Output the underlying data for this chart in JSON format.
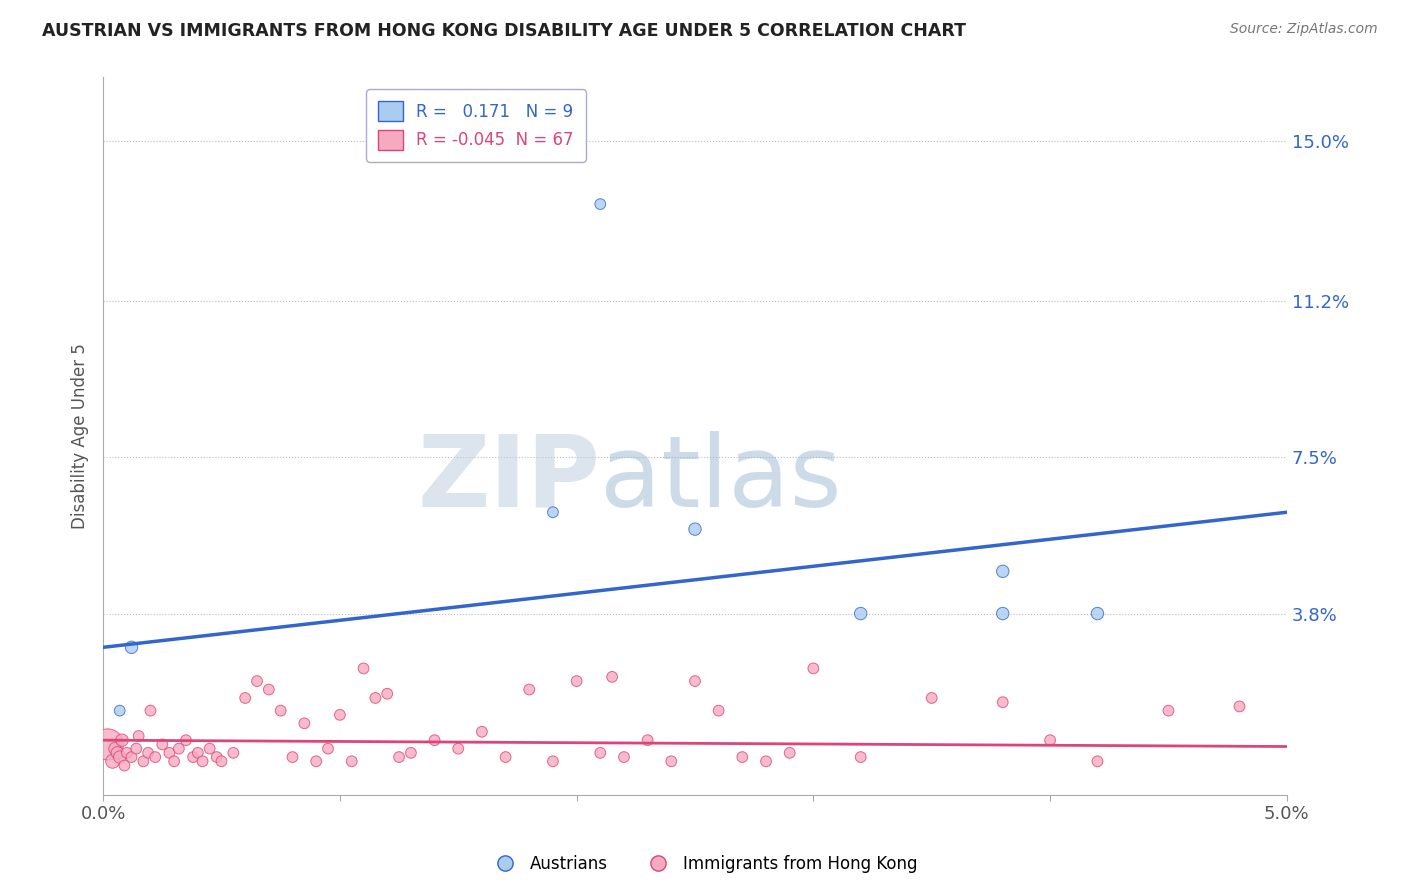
{
  "title": "AUSTRIAN VS IMMIGRANTS FROM HONG KONG DISABILITY AGE UNDER 5 CORRELATION CHART",
  "source": "Source: ZipAtlas.com",
  "ylabel": "Disability Age Under 5",
  "xlim": [
    0.0,
    5.0
  ],
  "ylim": [
    -0.5,
    16.5
  ],
  "yticks": [
    3.8,
    7.5,
    11.2,
    15.0
  ],
  "ytick_labels": [
    "3.8%",
    "7.5%",
    "11.2%",
    "15.0%"
  ],
  "xticks": [
    0.0,
    1.0,
    2.0,
    3.0,
    4.0,
    5.0
  ],
  "xtick_labels": [
    "0.0%",
    "",
    "",
    "",
    "",
    "5.0%"
  ],
  "blue_R": "0.171",
  "blue_N": "9",
  "pink_R": "-0.045",
  "pink_N": "67",
  "blue_color": "#aaccf0",
  "pink_color": "#f5aac0",
  "blue_line_color": "#3366cc",
  "pink_line_color": "#dd4477",
  "watermark_zip": "ZIP",
  "watermark_atlas": "atlas",
  "blue_scatter_x": [
    2.1,
    1.9,
    2.5,
    0.07,
    0.12,
    3.2,
    3.8,
    4.2,
    3.8
  ],
  "blue_scatter_y": [
    13.5,
    6.2,
    5.8,
    1.5,
    3.0,
    3.8,
    3.8,
    3.8,
    4.8
  ],
  "blue_scatter_size": [
    60,
    60,
    80,
    60,
    80,
    80,
    80,
    80,
    80
  ],
  "blue_trend_x": [
    0.0,
    5.0
  ],
  "blue_trend_y": [
    3.0,
    6.2
  ],
  "pink_trend_x": [
    0.0,
    5.0
  ],
  "pink_trend_y": [
    0.8,
    0.65
  ],
  "pink_scatter_x": [
    0.02,
    0.04,
    0.05,
    0.06,
    0.07,
    0.08,
    0.09,
    0.1,
    0.12,
    0.14,
    0.15,
    0.17,
    0.19,
    0.2,
    0.22,
    0.25,
    0.28,
    0.3,
    0.32,
    0.35,
    0.38,
    0.4,
    0.42,
    0.45,
    0.48,
    0.5,
    0.55,
    0.6,
    0.65,
    0.7,
    0.75,
    0.8,
    0.85,
    0.9,
    0.95,
    1.0,
    1.05,
    1.1,
    1.15,
    1.2,
    1.25,
    1.3,
    1.4,
    1.5,
    1.6,
    1.7,
    1.8,
    1.9,
    2.0,
    2.1,
    2.15,
    2.2,
    2.3,
    2.4,
    2.5,
    2.6,
    2.7,
    2.8,
    2.9,
    3.0,
    3.2,
    3.5,
    3.8,
    4.0,
    4.2,
    4.5,
    4.8
  ],
  "pink_scatter_y": [
    0.7,
    0.3,
    0.6,
    0.5,
    0.4,
    0.8,
    0.2,
    0.5,
    0.4,
    0.6,
    0.9,
    0.3,
    0.5,
    1.5,
    0.4,
    0.7,
    0.5,
    0.3,
    0.6,
    0.8,
    0.4,
    0.5,
    0.3,
    0.6,
    0.4,
    0.3,
    0.5,
    1.8,
    2.2,
    2.0,
    1.5,
    0.4,
    1.2,
    0.3,
    0.6,
    1.4,
    0.3,
    2.5,
    1.8,
    1.9,
    0.4,
    0.5,
    0.8,
    0.6,
    1.0,
    0.4,
    2.0,
    0.3,
    2.2,
    0.5,
    2.3,
    0.4,
    0.8,
    0.3,
    2.2,
    1.5,
    0.4,
    0.3,
    0.5,
    2.5,
    0.4,
    1.8,
    1.7,
    0.8,
    0.3,
    1.5,
    1.6
  ],
  "pink_scatter_size": [
    500,
    100,
    80,
    80,
    80,
    80,
    60,
    60,
    60,
    60,
    60,
    60,
    60,
    60,
    60,
    60,
    60,
    60,
    60,
    60,
    60,
    60,
    60,
    60,
    60,
    60,
    60,
    60,
    60,
    60,
    60,
    60,
    60,
    60,
    60,
    60,
    60,
    60,
    60,
    60,
    60,
    60,
    60,
    60,
    60,
    60,
    60,
    60,
    60,
    60,
    60,
    60,
    60,
    60,
    60,
    60,
    60,
    60,
    60,
    60,
    60,
    60,
    60,
    60,
    60,
    60,
    60
  ]
}
